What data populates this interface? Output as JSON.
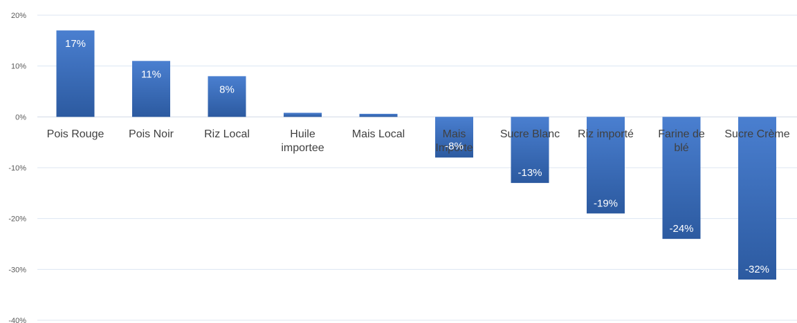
{
  "chart_data": {
    "type": "bar",
    "categories": [
      [
        "Pois Rouge"
      ],
      [
        "Pois Noir"
      ],
      [
        "Riz Local"
      ],
      [
        "Huile",
        "importee"
      ],
      [
        "Mais Local"
      ],
      [
        "Mais",
        "Importe"
      ],
      [
        "Sucre Blanc"
      ],
      [
        "Riz importé"
      ],
      [
        "Farine de",
        "blé"
      ],
      [
        "Sucre Crème"
      ]
    ],
    "values": [
      17,
      11,
      8,
      0.8,
      0.6,
      -8,
      -13,
      -19,
      -24,
      -32
    ],
    "data_labels": [
      "17%",
      "11%",
      "8%",
      "",
      "",
      "-8%",
      "-13%",
      "-19%",
      "-24%",
      "-32%"
    ],
    "y_ticks": [
      "20%",
      "10%",
      "0%",
      "-10%",
      "-20%",
      "-30%",
      "-40%"
    ],
    "ylim": [
      -40,
      20
    ],
    "grid": true,
    "colors": {
      "bar_top": "#4a7fd0",
      "bar_bottom": "#2c5aa0",
      "grid": "#dce6f2",
      "zero_line": "#d0d8e4"
    }
  }
}
